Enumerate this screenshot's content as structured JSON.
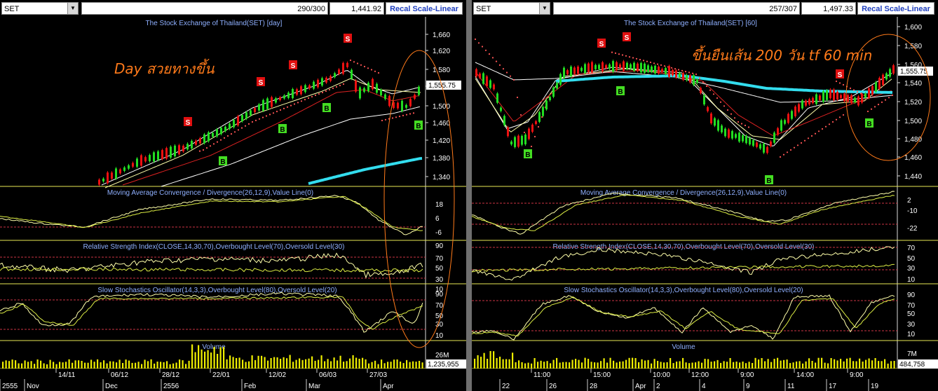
{
  "left": {
    "symbol": "SET",
    "count": "290/300",
    "price": "1,441.92",
    "scale_button": "Recal Scale-Linear",
    "panels": {
      "price_title": "The Stock Exchange of Thailand(SET) [day]",
      "macd_title": "Moving Average Convergence / Divergence(26,12,9),Value Line(0)",
      "rsi_title": "Relative Strength Index(CLOSE,14,30,70),Overbought Level(70),Oversold Level(30)",
      "stoch_title": "Slow Stochastics Oscillator(14,3,3),Overbought Level(80),Oversold Level(20)",
      "volume_title": "Volume"
    },
    "annotation": "Day สวยทางขึ้น",
    "price_axis": [
      "1,660",
      "1,620",
      "1,580",
      "1,540",
      "1,500",
      "1,460",
      "1,420",
      "1,380",
      "1,340"
    ],
    "last_price": "1,555.75",
    "macd_axis": [
      "18",
      "6",
      "-6"
    ],
    "rsi_axis": [
      "90",
      "70",
      "50",
      "30",
      "10"
    ],
    "stoch_axis": [
      "90",
      "70",
      "50",
      "30",
      "10"
    ],
    "volume_axis": [
      "26M"
    ],
    "last_volume": "1,235,955",
    "date_row1": [
      "14/11",
      "06/12",
      "28/12",
      "22/01",
      "12/02",
      "06/03",
      "27/03"
    ],
    "date_row2": [
      "2555",
      "Nov",
      "Dec",
      "2556",
      "Feb",
      "Mar",
      "Apr"
    ]
  },
  "right": {
    "symbol": "SET",
    "count": "257/307",
    "price": "1,497.33",
    "scale_button": "Recal Scale-Linear",
    "panels": {
      "price_title": "The Stock Exchange of Thailand(SET) [60]",
      "macd_title": "Moving Average Convergence / Divergence(26,12,9),Value Line(0)",
      "rsi_title": "Relative Strength Index(CLOSE,14,30,70),Overbought Level(70),Oversold Level(30)",
      "stoch_title": "Slow Stochastics Oscillator(14,3,3),Overbought Level(80),Oversold Level(20)",
      "volume_title": "Volume"
    },
    "annotation": "ขึ้นยืนเส้น 200 วัน tf 60 min",
    "price_axis": [
      "1,600",
      "1,580",
      "1,560",
      "1,540",
      "1,520",
      "1,500",
      "1,480",
      "1,460",
      "1,440"
    ],
    "last_price": "1,555.75",
    "macd_axis": [
      "2",
      "-10",
      "-22"
    ],
    "rsi_axis": [
      "70",
      "50",
      "30",
      "10"
    ],
    "stoch_axis": [
      "90",
      "70",
      "50",
      "30",
      "10"
    ],
    "volume_axis": [
      "7M",
      "3M"
    ],
    "last_volume": "484,758",
    "date_row1": [
      "11:00",
      "15:00",
      "10:00",
      "12:00",
      "9:00",
      "14:00",
      "9:00"
    ],
    "date_row2": [
      "22",
      "26",
      "28",
      "Apr",
      "2",
      "4",
      "9",
      "11",
      "17",
      "19"
    ]
  },
  "signal_labels": {
    "sell": "S",
    "buy": "B"
  },
  "colors": {
    "candle_up": "#22dd22",
    "candle_down": "#ee1111",
    "ma200": "#33ddee",
    "ma_white": "#ffffff",
    "ma_red": "#dd2222",
    "indicator_line": "#ffffaa",
    "level_line": "#cc3344",
    "annotation": "#ff7a1a",
    "panel_title": "#8fb0ff",
    "volume_bar": "#eeee00"
  }
}
